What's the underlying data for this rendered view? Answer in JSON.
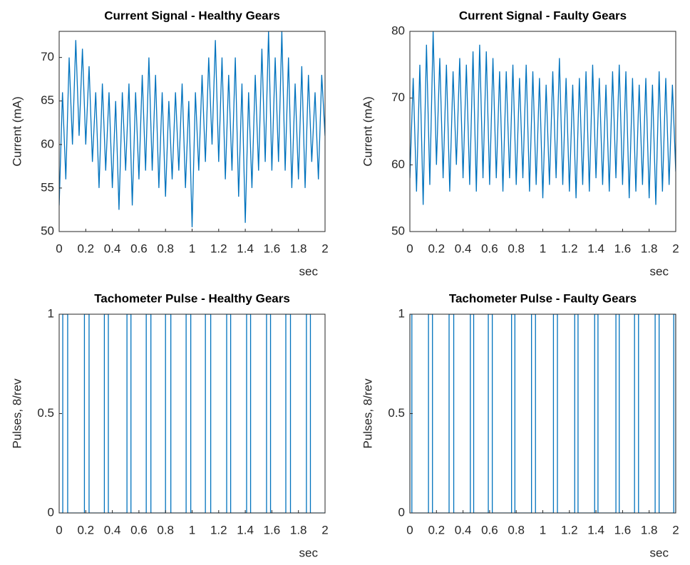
{
  "chart_data": [
    {
      "type": "line",
      "title": "Current Signal - Healthy Gears",
      "x_label": "sec",
      "y_label": "Current (mA)",
      "color": "#0072bd",
      "xlim": [
        0,
        2
      ],
      "xticks": [
        0,
        0.2,
        0.4,
        0.6,
        0.8,
        1,
        1.2,
        1.4,
        1.6,
        1.8,
        2
      ],
      "ylim": [
        50,
        73
      ],
      "yticks": [
        50,
        55,
        60,
        65,
        70
      ],
      "x": [
        0,
        0.025,
        0.05,
        0.075,
        0.1,
        0.125,
        0.15,
        0.175,
        0.2,
        0.225,
        0.25,
        0.275,
        0.3,
        0.325,
        0.35,
        0.375,
        0.4,
        0.425,
        0.45,
        0.475,
        0.5,
        0.525,
        0.55,
        0.575,
        0.6,
        0.625,
        0.65,
        0.675,
        0.7,
        0.725,
        0.75,
        0.775,
        0.8,
        0.825,
        0.85,
        0.875,
        0.9,
        0.925,
        0.95,
        0.975,
        1,
        1.025,
        1.05,
        1.075,
        1.1,
        1.125,
        1.15,
        1.175,
        1.2,
        1.225,
        1.25,
        1.275,
        1.3,
        1.325,
        1.35,
        1.375,
        1.4,
        1.425,
        1.45,
        1.475,
        1.5,
        1.525,
        1.55,
        1.575,
        1.6,
        1.625,
        1.65,
        1.675,
        1.7,
        1.725,
        1.75,
        1.775,
        1.8,
        1.825,
        1.85,
        1.875,
        1.9,
        1.925,
        1.95,
        1.975,
        2
      ],
      "values": [
        53,
        66,
        56,
        70,
        60,
        72,
        61,
        71,
        60,
        69,
        58,
        66,
        55,
        67,
        57,
        66,
        55,
        65,
        52.5,
        66,
        57,
        67,
        53,
        66,
        56,
        68,
        57,
        70,
        57,
        68,
        55,
        66,
        54,
        65,
        56,
        66,
        57,
        67,
        55,
        65,
        50.5,
        66,
        57,
        68,
        58,
        70,
        60,
        72,
        58,
        70,
        56,
        68,
        57,
        70,
        54,
        67,
        51,
        66,
        55,
        68,
        57,
        71,
        58,
        73,
        57,
        70,
        58,
        73,
        57,
        70,
        55,
        67,
        56,
        69,
        55,
        68,
        58,
        66,
        56,
        68,
        61
      ]
    },
    {
      "type": "line",
      "title": "Current Signal - Faulty Gears",
      "x_label": "sec",
      "y_label": "Current (mA)",
      "color": "#0072bd",
      "xlim": [
        0,
        2
      ],
      "xticks": [
        0,
        0.2,
        0.4,
        0.6,
        0.8,
        1,
        1.2,
        1.4,
        1.6,
        1.8,
        2
      ],
      "ylim": [
        50,
        80
      ],
      "yticks": [
        50,
        60,
        70,
        80
      ],
      "x": [
        0,
        0.025,
        0.05,
        0.075,
        0.1,
        0.125,
        0.15,
        0.175,
        0.2,
        0.225,
        0.25,
        0.275,
        0.3,
        0.325,
        0.35,
        0.375,
        0.4,
        0.425,
        0.45,
        0.475,
        0.5,
        0.525,
        0.55,
        0.575,
        0.6,
        0.625,
        0.65,
        0.675,
        0.7,
        0.725,
        0.75,
        0.775,
        0.8,
        0.825,
        0.85,
        0.875,
        0.9,
        0.925,
        0.95,
        0.975,
        1,
        1.025,
        1.05,
        1.075,
        1.1,
        1.125,
        1.15,
        1.175,
        1.2,
        1.225,
        1.25,
        1.275,
        1.3,
        1.325,
        1.35,
        1.375,
        1.4,
        1.425,
        1.45,
        1.475,
        1.5,
        1.525,
        1.55,
        1.575,
        1.6,
        1.625,
        1.65,
        1.675,
        1.7,
        1.725,
        1.75,
        1.775,
        1.8,
        1.825,
        1.85,
        1.875,
        1.9,
        1.925,
        1.95,
        1.975,
        2
      ],
      "values": [
        58,
        73,
        56,
        75,
        54,
        78,
        57,
        80,
        60,
        76,
        58,
        75,
        56,
        74,
        60,
        76,
        58,
        75,
        57,
        77,
        56,
        78,
        58,
        77,
        57,
        76,
        58,
        74,
        56,
        74,
        58,
        75,
        57,
        73,
        58,
        75,
        56,
        74,
        57,
        73,
        55,
        72,
        57,
        74,
        58,
        76,
        57,
        73,
        56,
        72,
        55,
        73,
        57,
        74,
        56,
        75,
        58,
        73,
        57,
        72,
        56,
        74,
        58,
        75,
        57,
        74,
        55,
        73,
        56,
        72,
        57,
        73,
        55,
        72,
        54,
        74,
        56,
        73,
        57,
        72,
        59
      ]
    },
    {
      "type": "line",
      "title": "Tachometer Pulse - Healthy Gears",
      "x_label": "sec",
      "y_label": "Pulses, 8/rev",
      "color": "#0072bd",
      "xlim": [
        0,
        2
      ],
      "xticks": [
        0,
        0.2,
        0.4,
        0.6,
        0.8,
        1,
        1.2,
        1.4,
        1.6,
        1.8,
        2
      ],
      "ylim": [
        0,
        1
      ],
      "yticks": [
        0,
        0.5,
        1
      ],
      "x": [
        0,
        0.027,
        0.027,
        0.064,
        0.064,
        0.19,
        0.19,
        0.225,
        0.225,
        0.34,
        0.34,
        0.37,
        0.37,
        0.51,
        0.51,
        0.54,
        0.54,
        0.655,
        0.655,
        0.69,
        0.69,
        0.8,
        0.8,
        0.84,
        0.84,
        0.955,
        0.955,
        0.99,
        0.99,
        1.1,
        1.1,
        1.14,
        1.14,
        1.26,
        1.26,
        1.29,
        1.29,
        1.41,
        1.41,
        1.44,
        1.44,
        1.56,
        1.56,
        1.59,
        1.59,
        1.705,
        1.705,
        1.74,
        1.74,
        1.86,
        1.86,
        1.89,
        1.89,
        2
      ],
      "values": [
        0,
        0,
        1,
        1,
        0,
        0,
        1,
        1,
        0,
        0,
        1,
        1,
        0,
        0,
        1,
        1,
        0,
        0,
        1,
        1,
        0,
        0,
        1,
        1,
        0,
        0,
        1,
        1,
        0,
        0,
        1,
        1,
        0,
        0,
        1,
        1,
        0,
        0,
        1,
        1,
        0,
        0,
        1,
        1,
        0,
        0,
        1,
        1,
        0,
        0,
        1,
        1,
        0,
        0
      ]
    },
    {
      "type": "line",
      "title": "Tachometer Pulse - Faulty Gears",
      "x_label": "sec",
      "y_label": "Pulses, 8/rev",
      "color": "#0072bd",
      "xlim": [
        0,
        2
      ],
      "xticks": [
        0,
        0.2,
        0.4,
        0.6,
        0.8,
        1,
        1.2,
        1.4,
        1.6,
        1.8,
        2
      ],
      "ylim": [
        0,
        1
      ],
      "yticks": [
        0,
        0.5,
        1
      ],
      "x": [
        0,
        0,
        0,
        0.015,
        0.015,
        0.14,
        0.14,
        0.17,
        0.17,
        0.295,
        0.295,
        0.33,
        0.33,
        0.455,
        0.455,
        0.48,
        0.48,
        0.59,
        0.59,
        0.62,
        0.62,
        0.765,
        0.765,
        0.79,
        0.79,
        0.915,
        0.915,
        0.945,
        0.945,
        1.08,
        1.08,
        1.11,
        1.11,
        1.24,
        1.24,
        1.265,
        1.265,
        1.39,
        1.39,
        1.415,
        1.415,
        1.55,
        1.55,
        1.575,
        1.575,
        1.69,
        1.69,
        1.72,
        1.72,
        1.845,
        1.845,
        1.875,
        1.875,
        1.985,
        1.985,
        2,
        2,
        2
      ],
      "values": [
        0,
        0,
        1,
        1,
        0,
        0,
        1,
        1,
        0,
        0,
        1,
        1,
        0,
        0,
        1,
        1,
        0,
        0,
        1,
        1,
        0,
        0,
        1,
        1,
        0,
        0,
        1,
        1,
        0,
        0,
        1,
        1,
        0,
        0,
        1,
        1,
        0,
        0,
        1,
        1,
        0,
        0,
        1,
        1,
        0,
        0,
        1,
        1,
        0,
        0,
        1,
        1,
        0,
        0,
        1,
        1,
        0,
        0
      ]
    }
  ]
}
